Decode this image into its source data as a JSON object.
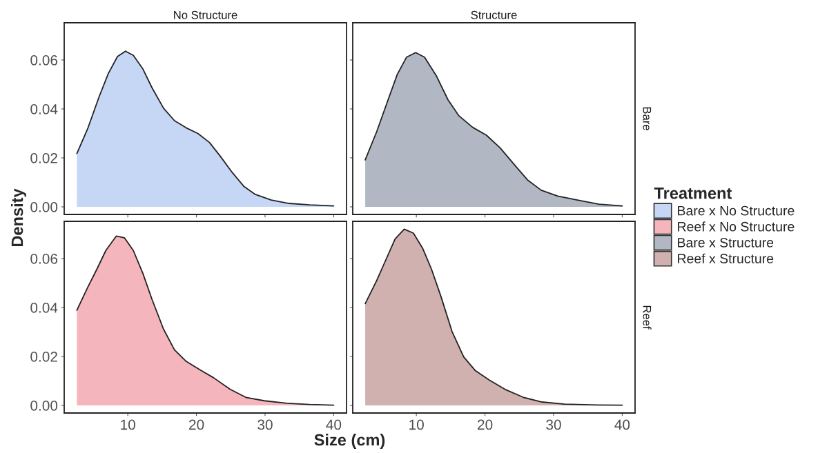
{
  "chart_data": [
    {
      "type": "area",
      "title": "No Structure",
      "xlim": [
        0.73,
        41.87
      ],
      "ylim": [
        -0.0031,
        0.0752
      ],
      "xticks": [
        10,
        20,
        30,
        40
      ],
      "yticks": [
        {
          "value": 0,
          "label": "0.00"
        },
        {
          "value": 0.02,
          "label": "0.02"
        },
        {
          "value": 0.04,
          "label": "0.04"
        },
        {
          "value": 0.06,
          "label": "0.06"
        }
      ],
      "tick_labels": "y",
      "grid": false,
      "legend": "right",
      "legend_title": "Treatment",
      "series": [
        {
          "name": "Bare x No Structure",
          "color": "#c6d7f5",
          "x": [
            2.58,
            4.15,
            5.82,
            7.15,
            8.49,
            9.66,
            10.8,
            12.2,
            13.5,
            15.2,
            16.8,
            18.5,
            20.2,
            21.9,
            23.5,
            25.2,
            26.9,
            28.5,
            30.9,
            33.5,
            36.5,
            40
          ],
          "values": [
            0.0218,
            0.0319,
            0.045,
            0.0544,
            0.0614,
            0.0636,
            0.0619,
            0.0563,
            0.0488,
            0.0403,
            0.0352,
            0.0323,
            0.03,
            0.0263,
            0.0206,
            0.0141,
            0.0084,
            0.0052,
            0.0028,
            0.0014,
            0.0008,
            0.0004
          ]
        }
      ]
    },
    {
      "type": "area",
      "title": "Structure",
      "y2label": "Bare",
      "xlim": [
        0.73,
        41.87
      ],
      "ylim": [
        -0.0031,
        0.0752
      ],
      "xticks": [
        10,
        20,
        30,
        40
      ],
      "yticks": [
        0,
        0.02,
        0.04,
        0.06
      ],
      "tick_labels": false,
      "grid": false,
      "series": [
        {
          "name": "Bare x Structure",
          "color": "#b1b8c3",
          "x": [
            2.55,
            4.22,
            5.89,
            7.22,
            8.56,
            9.9,
            11.2,
            12.9,
            14.6,
            16.2,
            18.2,
            20.2,
            22.2,
            24.2,
            26.2,
            28.2,
            30.6,
            33.6,
            36.6,
            40
          ],
          "values": [
            0.0192,
            0.0307,
            0.0438,
            0.0541,
            0.0611,
            0.063,
            0.0611,
            0.0536,
            0.0438,
            0.0372,
            0.0325,
            0.0293,
            0.0241,
            0.0175,
            0.011,
            0.0068,
            0.0044,
            0.0027,
            0.0011,
            0.0004
          ]
        }
      ]
    },
    {
      "type": "area",
      "xlabel": "Size (cm)",
      "ylabel": "Density",
      "xlim": [
        0.73,
        41.87
      ],
      "ylim": [
        -0.0031,
        0.0752
      ],
      "xticks": [
        10,
        20,
        30,
        40
      ],
      "yticks": [
        {
          "value": 0,
          "label": "0.00"
        },
        {
          "value": 0.02,
          "label": "0.02"
        },
        {
          "value": 0.04,
          "label": "0.04"
        },
        {
          "value": 0.06,
          "label": "0.06"
        }
      ],
      "grid": false,
      "series": [
        {
          "name": "Reef x No Structure",
          "color": "#f5b5bd",
          "x": [
            2.58,
            4.15,
            5.5,
            6.8,
            8.33,
            9.5,
            10.8,
            12.2,
            13.5,
            15.2,
            16.8,
            18.5,
            20.5,
            22.5,
            24.9,
            27.2,
            29.9,
            33.2,
            36.5,
            40
          ],
          "values": [
            0.0389,
            0.0482,
            0.0557,
            0.0633,
            0.0692,
            0.0685,
            0.0633,
            0.0539,
            0.0435,
            0.0312,
            0.0227,
            0.018,
            0.0146,
            0.0113,
            0.0066,
            0.0033,
            0.0019,
            0.0009,
            0.0004,
            0.0001
          ]
        }
      ]
    },
    {
      "type": "area",
      "y2label": "Reef",
      "xlim": [
        0.73,
        41.87
      ],
      "ylim": [
        -0.0031,
        0.0752
      ],
      "xticks": [
        10,
        20,
        30,
        40
      ],
      "yticks": [
        0,
        0.02,
        0.04,
        0.06
      ],
      "tick_labels": "x",
      "grid": false,
      "series": [
        {
          "name": "Reef x Structure",
          "color": "#d1b0b0",
          "x": [
            2.55,
            4.22,
            5.56,
            6.9,
            8.23,
            9.56,
            10.9,
            12.2,
            13.6,
            15.2,
            16.9,
            18.6,
            20.6,
            22.9,
            25.6,
            28.3,
            31.6,
            36.3,
            40
          ],
          "values": [
            0.0416,
            0.051,
            0.0595,
            0.068,
            0.072,
            0.0704,
            0.0643,
            0.0557,
            0.0444,
            0.0302,
            0.0198,
            0.0142,
            0.0104,
            0.0066,
            0.0033,
            0.0014,
            0.0005,
            0.0002,
            0.0001
          ]
        }
      ]
    }
  ]
}
